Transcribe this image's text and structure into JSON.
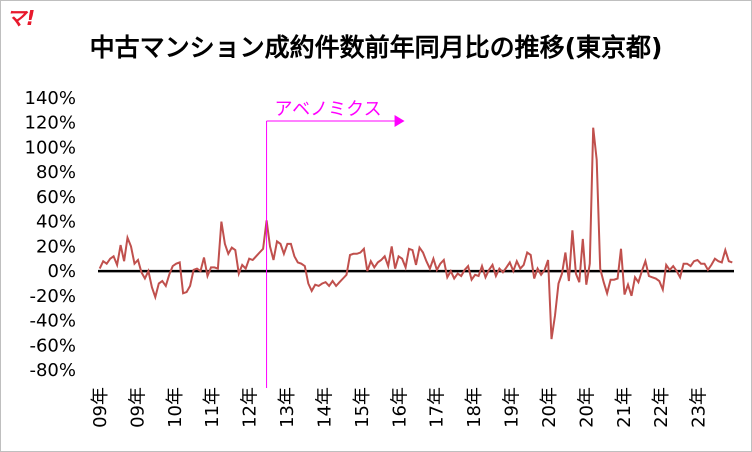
{
  "logo_text": "マ!",
  "chart_data": {
    "type": "line",
    "title": "中古マンション成約件数前年同月比の推移(東京都)",
    "xlabel": "",
    "ylabel": "",
    "ylim": [
      -80,
      140
    ],
    "y_ticks": [
      "140%",
      "120%",
      "100%",
      "80%",
      "60%",
      "40%",
      "20%",
      "0%",
      "-20%",
      "-40%",
      "-60%",
      "-80%"
    ],
    "x_tick_labels": [
      "09年",
      "09年",
      "10年",
      "11年",
      "12年",
      "13年",
      "14年",
      "15年",
      "16年",
      "17年",
      "18年",
      "19年",
      "20年",
      "20年",
      "21年",
      "22年",
      "23年"
    ],
    "grid": false,
    "annotation": {
      "text": "アベノミクス",
      "start_index": 48
    },
    "series": [
      {
        "color": "#c0504d",
        "values": [
          2,
          8,
          6,
          10,
          12,
          5,
          21,
          8,
          27,
          20,
          6,
          9,
          -1,
          -6,
          0,
          -13,
          -21,
          -10,
          -8,
          -12,
          -3,
          4,
          6,
          7,
          -18,
          -17,
          -12,
          1,
          2,
          0,
          11,
          -4,
          3,
          3,
          2,
          40,
          22,
          14,
          19,
          17,
          -2,
          5,
          2,
          10,
          9,
          12,
          15,
          18,
          41,
          20,
          9,
          24,
          22,
          14,
          22,
          22,
          12,
          7,
          6,
          4,
          -10,
          -16,
          -11,
          -12,
          -10,
          -9,
          -12,
          -8,
          -12,
          -9,
          -6,
          -3,
          13,
          14,
          14,
          15,
          18,
          0,
          8,
          3,
          7,
          9,
          12,
          4,
          20,
          2,
          12,
          10,
          3,
          18,
          17,
          5,
          19,
          15,
          8,
          2,
          10,
          1,
          6,
          9,
          -5,
          0,
          -6,
          -2,
          -4,
          1,
          4,
          -7,
          -3,
          -4,
          4,
          -5,
          1,
          5,
          -4,
          2,
          -1,
          3,
          7,
          0,
          8,
          2,
          5,
          15,
          13,
          -6,
          2,
          -3,
          1,
          9,
          -55,
          -36,
          -10,
          -2,
          15,
          -8,
          33,
          -2,
          -9,
          26,
          -11,
          6,
          116,
          90,
          2,
          -9,
          -18,
          -7,
          -7,
          -6,
          18,
          -19,
          -11,
          -20,
          -5,
          -9,
          0,
          8,
          -4,
          -5,
          -6,
          -8,
          -15,
          5,
          1,
          4,
          0,
          -5,
          6,
          6,
          4,
          8,
          9,
          6,
          6,
          1,
          5,
          10,
          8,
          7,
          17,
          8,
          7
        ]
      }
    ]
  }
}
